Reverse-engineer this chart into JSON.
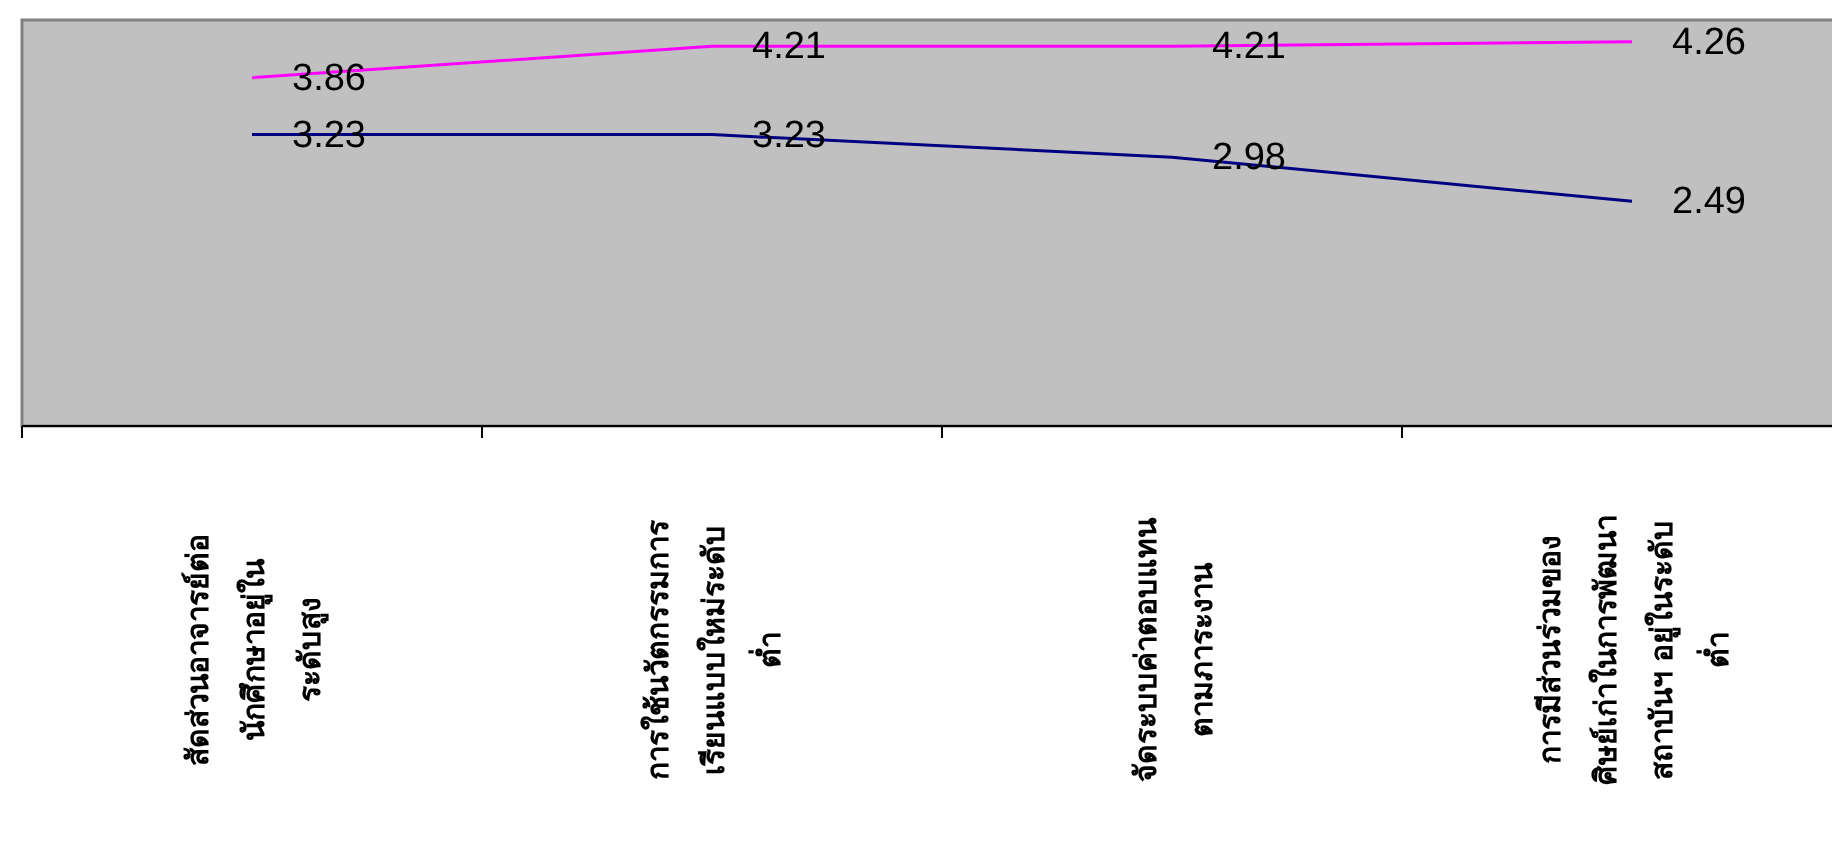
{
  "chart_data": {
    "type": "line",
    "categories": [
      "สัดส่วนอาจารย์ต่อ\nนักศึกษาอยู่ใน\nระดับสูง",
      "การใช้นวัตกรรมการ\nเรียนแบบใหม่ระดับ\nต่ำ",
      "จัดระบบค่าตอบแทน\nตามภาระงาน",
      "การมีส่วนร่วมของ\nศิษย์เก่าในการพัฒนา\nสถาบันฯ อยู่ในระดับ\nต่ำ"
    ],
    "series": [
      {
        "color": "#ff00ff",
        "values": [
          3.86,
          4.21,
          4.21,
          4.26
        ]
      },
      {
        "color": "#000080",
        "values": [
          3.23,
          3.23,
          2.98,
          2.49
        ]
      }
    ],
    "ylim": [
      0,
      4.5
    ],
    "data_labels": true
  }
}
